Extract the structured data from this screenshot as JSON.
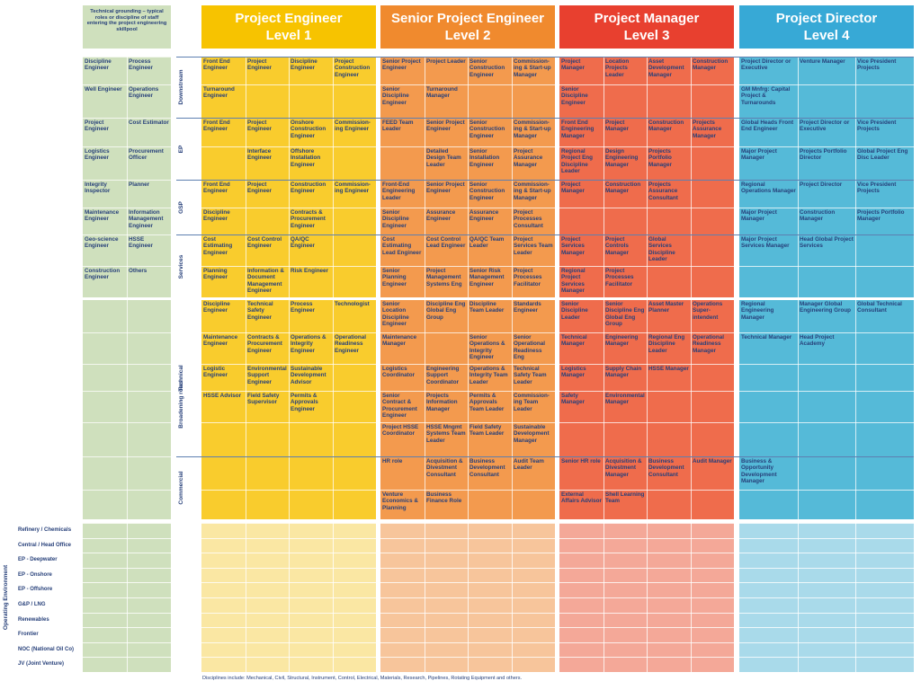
{
  "intro": "Technical grounding – typical roles or discipline of staff entering the project engineering skillpool",
  "footnote": "Disciplines include: Mechanical, Civil, Structural, Instrument, Control, Electrical, Materials, Research, Pipelines, Rotating Equipment and others.",
  "levels": [
    {
      "title": "Project Engineer",
      "level": "Level 1",
      "color": "#f9cc2d",
      "head": "#f7c300",
      "light": "#fae7a3"
    },
    {
      "title": "Senior Project Engineer",
      "level": "Level 2",
      "color": "#f39a4e",
      "head": "#f08a2e",
      "light": "#f7c59b"
    },
    {
      "title": "Project Manager",
      "level": "Level 3",
      "color": "#ef6c4c",
      "head": "#e8402f",
      "light": "#f4a898"
    },
    {
      "title": "Project Director",
      "level": "Level 4",
      "color": "#55bad8",
      "head": "#37a9d6",
      "light": "#a9daea"
    }
  ],
  "left_color": "#cfe0bd",
  "groups": [
    {
      "name": "Downstream"
    },
    {
      "name": "EP"
    },
    {
      "name": "GSP"
    },
    {
      "name": "Services"
    },
    {
      "name": "Technical"
    },
    {
      "name": "Commercial"
    }
  ],
  "broadening": "Broadening roles",
  "operating_label": "Operating Environment",
  "environments": [
    "Refinery / Chemicals",
    "Central / Head Office",
    "EP - Deepwater",
    "EP - Onshore",
    "EP - Offshore",
    "G&P / LNG",
    "Renewables",
    "Frontier",
    "NOC (National Oil Co)",
    "JV (Joint Venture)"
  ],
  "grounding": [
    [
      "Discipline Engineer",
      "Process Engineer"
    ],
    [
      "Well Engineer",
      "Operations Engineer"
    ],
    [
      "Project Engineer",
      "Cost Estimator"
    ],
    [
      "Logistics Engineer",
      "Procurement Officer"
    ],
    [
      "Integrity Inspector",
      "Planner"
    ],
    [
      "Maintenance Engineer",
      "Information Management Engineer"
    ],
    [
      "Geo-science Engineer",
      "HSSE Engineer"
    ],
    [
      "Construction Engineer",
      "Others"
    ]
  ],
  "rows": [
    [
      [
        "Front End Engineer",
        "Project Engineer",
        "Discipline Engineer",
        "Project Construction Engineer"
      ],
      [
        "Senior Project Engineer",
        "Project Leader",
        "Senior Construction Engineer",
        "Commission-ing & Start-up Manager"
      ],
      [
        "Project Manager",
        "Location Projects Leader",
        "Asset Development Manager",
        "Construction Manager"
      ],
      [
        "Project Director or Executive",
        "Venture Manager",
        "Vice President Projects"
      ]
    ],
    [
      [
        "Turnaround Engineer",
        "",
        "",
        ""
      ],
      [
        "Senior Discipline Engineer",
        "Turnaround Manager",
        "",
        ""
      ],
      [
        "Senior Discipline Engineer",
        "",
        "",
        ""
      ],
      [
        "GM Mnfrg: Capital Project & Turnarounds",
        "",
        ""
      ]
    ],
    [
      [
        "Front End Engineer",
        "Project Engineer",
        "Onshore Construction Engineer",
        "Commission-ing Engineer"
      ],
      [
        "FEED Team Leader",
        "Senior Project Engineer",
        "Senior Construction Engineer",
        "Commission-ing & Start-up Manager"
      ],
      [
        "Front End Engineering Manager",
        "Project Manager",
        "Construction Manager",
        "Projects Assurance Manager"
      ],
      [
        "Global Heads Front End Engineer",
        "Project Director or Executive",
        "Vice President Projects"
      ]
    ],
    [
      [
        "",
        "Interface Engineer",
        "Offshore Installation Engineer",
        ""
      ],
      [
        "",
        "Detailed Design Team Leader",
        "Senior Installation Engineer",
        "Project Assurance Manager"
      ],
      [
        "Regional Project Eng Discipline Leader",
        "Design Engineering Manager",
        "Projects Portfolio Manager",
        ""
      ],
      [
        "Major Project Manager",
        "Projects Portfolio Director",
        "Global Project Eng Disc Leader"
      ]
    ],
    [
      [
        "Front End Engineer",
        "Project Engineer",
        "Construction Engineer",
        "Commission-ing Engineer"
      ],
      [
        "Front-End Engineering Leader",
        "Senior Project Engineer",
        "Senior Construction Engineer",
        "Commission-ing & Start-up Manager"
      ],
      [
        "Project Manager",
        "Construction Manager",
        "Projects Assurance Consultant",
        ""
      ],
      [
        "Regional Operations Manager",
        "Project Director",
        "Vice President Projects"
      ]
    ],
    [
      [
        "Discipline Engineer",
        "",
        "Contracts & Procurement Engineer",
        ""
      ],
      [
        "Senior Discipline Engineer",
        "Assurance Engineer",
        "Assurance Engineer",
        "Project Processes Consultant"
      ],
      [
        "",
        "",
        "",
        ""
      ],
      [
        "Major Project Manager",
        "Construction Manager",
        "Projects Portfolio Manager"
      ]
    ],
    [
      [
        "Cost Estimating Engineer",
        "Cost Control Engineer",
        "QA/QC Engineer",
        ""
      ],
      [
        "Cost Estimating Lead Engineer",
        "Cost Control Lead Engineer",
        "QA/QC Team Leader",
        "Project Services Team Leader"
      ],
      [
        "Project Services Manager",
        "Project Controls Manager",
        "Global Services Discipline Leader",
        ""
      ],
      [
        "Major Project Services Manager",
        "Head Global Project Services",
        ""
      ]
    ],
    [
      [
        "Planning Engineer",
        "Information & Document Management Engineer",
        "Risk Engineer",
        ""
      ],
      [
        "Senior Planning Engineer",
        "Project Management Systems Eng",
        "Senior Risk Management Engineer",
        "Project Processes Facilitator"
      ],
      [
        "Regional Project Services Manager",
        "Project Processes Facilitator",
        "",
        ""
      ],
      [
        "",
        "",
        ""
      ]
    ],
    [
      [
        "Discipline Engineer",
        "Technical Safety Engineer",
        "Process Engineer",
        "Technologist"
      ],
      [
        "Senior Location Discipline Engineer",
        "Discipline Eng Global Eng Group",
        "Discipline Team Leader",
        "Standards Engineer"
      ],
      [
        "Senior Discipline Leader",
        "Senior Discipline Eng Global Eng Group",
        "Asset Master Planner",
        "Operations Super-intendent"
      ],
      [
        "Regional Engineering Manager",
        "Manager Global Engineering Group",
        "Global Technical Consultant"
      ]
    ],
    [
      [
        "Maintenance Engineer",
        "Contracts & Procurement Engineer",
        "Operations & Integrity Engineer",
        "Operational Readiness Engineer"
      ],
      [
        "Maintenance Manager",
        "",
        "Senior Operations & Integrity Engineer",
        "Senior Operational Readiness Eng"
      ],
      [
        "Technical Manager",
        "Engineering Manager",
        "Regional Eng Discipline Leader",
        "Operational Readiness Manager"
      ],
      [
        "Technical Manager",
        "Head Project Academy",
        ""
      ]
    ],
    [
      [
        "Logistic Engineer",
        "Environmental Support Engineer",
        "Sustainable Development Advisor",
        ""
      ],
      [
        "Logistics Coordinator",
        "Engineering Support Coordinator",
        "Operations & Integrity Team Leader",
        "Technical Safety Team Leader"
      ],
      [
        "Logistics Manager",
        "Supply Chain Manager",
        "HSSE Manager",
        ""
      ],
      [
        "",
        "",
        ""
      ]
    ],
    [
      [
        "HSSE Advisor",
        "Field Safety Supervisor",
        "Permits & Approvals Engineer",
        ""
      ],
      [
        "Senior Contract & Procurement Engineer",
        "Projects Information Manager",
        "Permits & Approvals Team Leader",
        "Commission-ing Team Leader"
      ],
      [
        "Safety Manager",
        "Environmental Manager",
        "",
        ""
      ],
      [
        "",
        "",
        ""
      ]
    ],
    [
      [
        "",
        "",
        "",
        ""
      ],
      [
        "Project HSSE Coordinator",
        "HSSE Mngmt Systems Team Leader",
        "Field Safety Team Leader",
        "Sustainable Development Manager"
      ],
      [
        "",
        "",
        "",
        ""
      ],
      [
        "",
        "",
        ""
      ]
    ],
    [
      [
        "",
        "",
        "",
        ""
      ],
      [
        "HR role",
        "Acquisition & Divestment Consultant",
        "Business Development Consultant",
        "Audit Team Leader"
      ],
      [
        "Senior HR role",
        "Acquisition & Divestment Manager",
        "Business Development Consultant",
        "Audit Manager"
      ],
      [
        "Business & Opportunity Development Manager",
        "",
        ""
      ]
    ],
    [
      [
        "",
        "",
        "",
        ""
      ],
      [
        "Venture Economics & Planning",
        "Business Finance Role",
        "",
        ""
      ],
      [
        "External Affairs Advisor",
        "Shell Learning Team",
        "",
        ""
      ],
      [
        "",
        "",
        ""
      ]
    ]
  ]
}
